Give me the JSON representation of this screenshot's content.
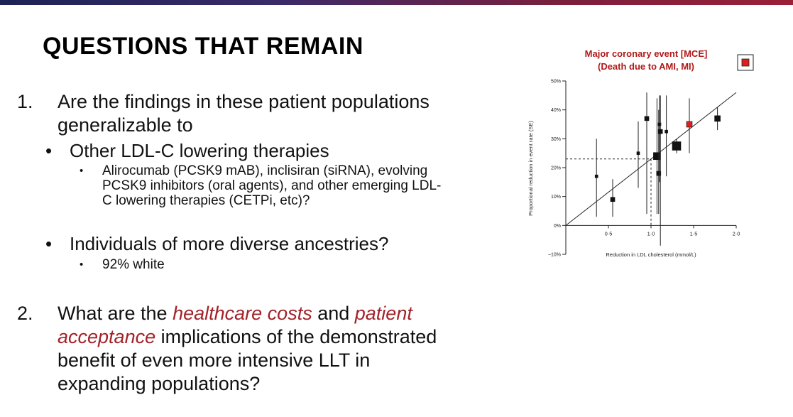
{
  "slide": {
    "title": "QUESTIONS THAT REMAIN",
    "q1": {
      "number": "1.",
      "line1": "Are the findings in these patient populations",
      "line2": "generalizable to",
      "sub1": {
        "bullet": "•",
        "text": "Other LDL-C lowering therapies",
        "detail_bullet": "•",
        "detail_lines": [
          "Alirocumab (PCSK9 mAB), inclisiran (siRNA), evolving",
          "PCSK9 inhibitors (oral agents), and other emerging LDL-",
          "C lowering therapies (CETPi, etc)?"
        ]
      },
      "sub2": {
        "bullet": "•",
        "text": "Individuals of more diverse ancestries?",
        "detail_bullet": "•",
        "detail": "92% white"
      }
    },
    "q2": {
      "number": "2.",
      "pre": "What are the ",
      "em1": "healthcare costs",
      "mid": " and ",
      "em2": "patient",
      "em3": "acceptance",
      "line2_rest": " implications of the demonstrated",
      "line3": "benefit of even more intensive LLT in",
      "line4": "expanding populations?"
    }
  },
  "chart_data": {
    "type": "scatter",
    "title": "Major coronary event [MCE]",
    "subtitle": "(Death due to AMI, MI)",
    "xlabel": "Reduction in LDL cholesterol (mmol/L)",
    "ylabel": "Proportional reduction in event rate (SE)",
    "xlim": [
      0,
      2.0
    ],
    "ylim": [
      -10,
      50
    ],
    "x_ticks": [
      "0·5",
      "1·0",
      "1·5",
      "2·0"
    ],
    "x_tick_values": [
      0.5,
      1.0,
      1.5,
      2.0
    ],
    "y_ticks": [
      "50%",
      "40%",
      "30%",
      "20%",
      "10%",
      "0%",
      "–10%"
    ],
    "y_tick_values": [
      50,
      40,
      30,
      20,
      10,
      0,
      -10
    ],
    "regression_line": {
      "x": [
        0,
        2.0
      ],
      "y": [
        0,
        46
      ]
    },
    "reference": {
      "x": 1.0,
      "y": 23
    },
    "legend_color": "#dd1f1f",
    "highlight_color": "#dd1f1f",
    "points": [
      {
        "x": 0.36,
        "y": 17,
        "lo": 3,
        "hi": 30,
        "w": 1
      },
      {
        "x": 0.55,
        "y": 9,
        "lo": 3,
        "hi": 16,
        "w": 2
      },
      {
        "x": 0.85,
        "y": 25,
        "lo": 13,
        "hi": 36,
        "w": 1
      },
      {
        "x": 0.95,
        "y": 37,
        "lo": 4,
        "hi": 46,
        "w": 2
      },
      {
        "x": 1.07,
        "y": 24,
        "lo": 4,
        "hi": 44,
        "w": 4
      },
      {
        "x": 1.09,
        "y": 18,
        "lo": 4,
        "hi": 40,
        "w": 2
      },
      {
        "x": 1.1,
        "y": 35,
        "lo": 15,
        "hi": 45,
        "w": 1
      },
      {
        "x": 1.11,
        "y": 32.5,
        "lo": -7,
        "hi": 45,
        "w": 2
      },
      {
        "x": 1.18,
        "y": 32.5,
        "lo": 17,
        "hi": 45,
        "w": 1
      },
      {
        "x": 1.3,
        "y": 27.5,
        "lo": 25,
        "hi": 30,
        "w": 5
      },
      {
        "x": 1.45,
        "y": 35,
        "lo": 25,
        "hi": 44,
        "w": 3,
        "highlight": true
      },
      {
        "x": 1.78,
        "y": 37,
        "lo": 33,
        "hi": 41,
        "w": 3
      }
    ]
  }
}
